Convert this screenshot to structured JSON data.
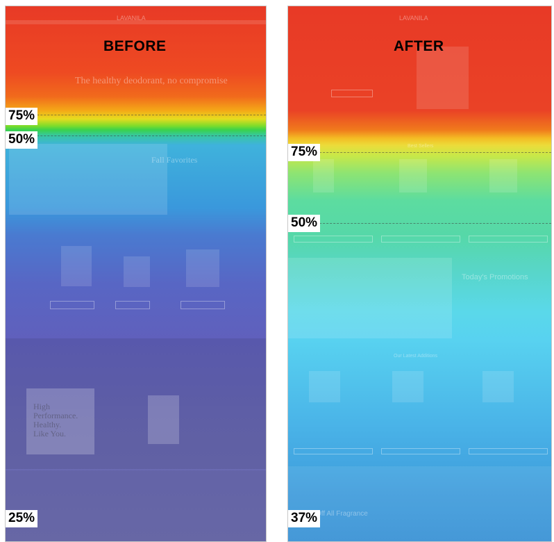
{
  "before": {
    "title": "BEFORE",
    "markers": {
      "m75": "75%",
      "m50": "50%",
      "m25": "25%"
    },
    "ghost": {
      "brand": "LAVANILA",
      "hero": "The healthy deodorant, no compromise",
      "fall": "Fall Favorites",
      "promo": [
        "High",
        "Performance.",
        "Healthy.",
        "Like You."
      ]
    }
  },
  "after": {
    "title": "AFTER",
    "markers": {
      "m75": "75%",
      "m50": "50%",
      "m37": "37%"
    },
    "ghost": {
      "brand": "LAVANILA",
      "best": "Best Sellers",
      "promo": "Today's Promotions",
      "latest": "Our Latest Additions",
      "fragrance": "Off All Fragrance"
    }
  }
}
